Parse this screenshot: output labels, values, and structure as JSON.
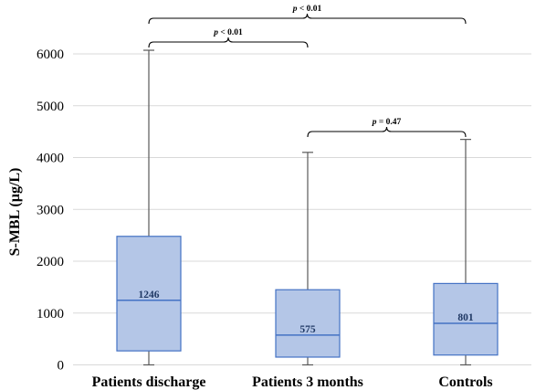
{
  "chart_data": {
    "type": "box",
    "ylabel": "S-MBL (µg/L)",
    "ylim": [
      0,
      6500
    ],
    "yticks": [
      0,
      1000,
      2000,
      3000,
      4000,
      5000,
      6000
    ],
    "grid": true,
    "categories": [
      "Patients discharge",
      "Patients 3 months",
      "Controls"
    ],
    "boxes": [
      {
        "category": "Patients discharge",
        "min": 0,
        "q1": 270,
        "median": 1246,
        "q3": 2480,
        "max": 6070,
        "median_label": "1246"
      },
      {
        "category": "Patients 3 months",
        "min": 0,
        "q1": 150,
        "median": 575,
        "q3": 1450,
        "max": 4100,
        "median_label": "575"
      },
      {
        "category": "Controls",
        "min": 0,
        "q1": 190,
        "median": 801,
        "q3": 1570,
        "max": 4350,
        "median_label": "801"
      }
    ],
    "significance": [
      {
        "from": 0,
        "to": 2,
        "p_symbol": "p",
        "value_text": " < 0.01"
      },
      {
        "from": 0,
        "to": 1,
        "p_symbol": "p",
        "value_text": " < 0.01"
      },
      {
        "from": 1,
        "to": 2,
        "p_symbol": "p",
        "value_text": " = 0.47"
      }
    ]
  },
  "colors": {
    "box_fill": "#b4c6e7",
    "box_stroke": "#4472c4",
    "median_label": "#1f3864",
    "whisker": "#595959",
    "grid": "#d9d9d9"
  }
}
